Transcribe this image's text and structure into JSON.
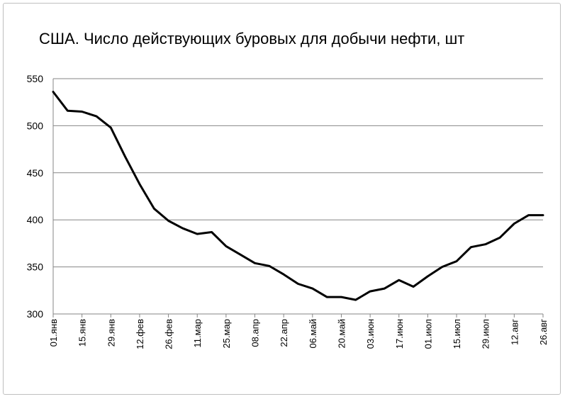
{
  "chart_data": {
    "type": "line",
    "title": "США. Число действующих буровых для добычи нефти, шт",
    "xlabel": "",
    "ylabel": "",
    "ylim": [
      300,
      550
    ],
    "y_ticks": [
      300,
      350,
      400,
      450,
      500,
      550
    ],
    "grid": true,
    "legend": "none",
    "x_tick_labels": [
      "01.янв",
      "15.янв",
      "29.янв",
      "12.фев",
      "26.фев",
      "11.мар",
      "25.мар",
      "08.апр",
      "22.апр",
      "06.май",
      "20.май",
      "03.июн",
      "17.июн",
      "01.июл",
      "15.июл",
      "29.июл",
      "12.авг",
      "26.авг"
    ],
    "series": [
      {
        "color": "#000000",
        "values": [
          536,
          516,
          515,
          510,
          498,
          467,
          438,
          412,
          399,
          391,
          385,
          387,
          372,
          363,
          354,
          351,
          342,
          332,
          327,
          318,
          318,
          315,
          324,
          327,
          336,
          329,
          340,
          350,
          356,
          371,
          374,
          381,
          396,
          405,
          405
        ]
      }
    ]
  }
}
